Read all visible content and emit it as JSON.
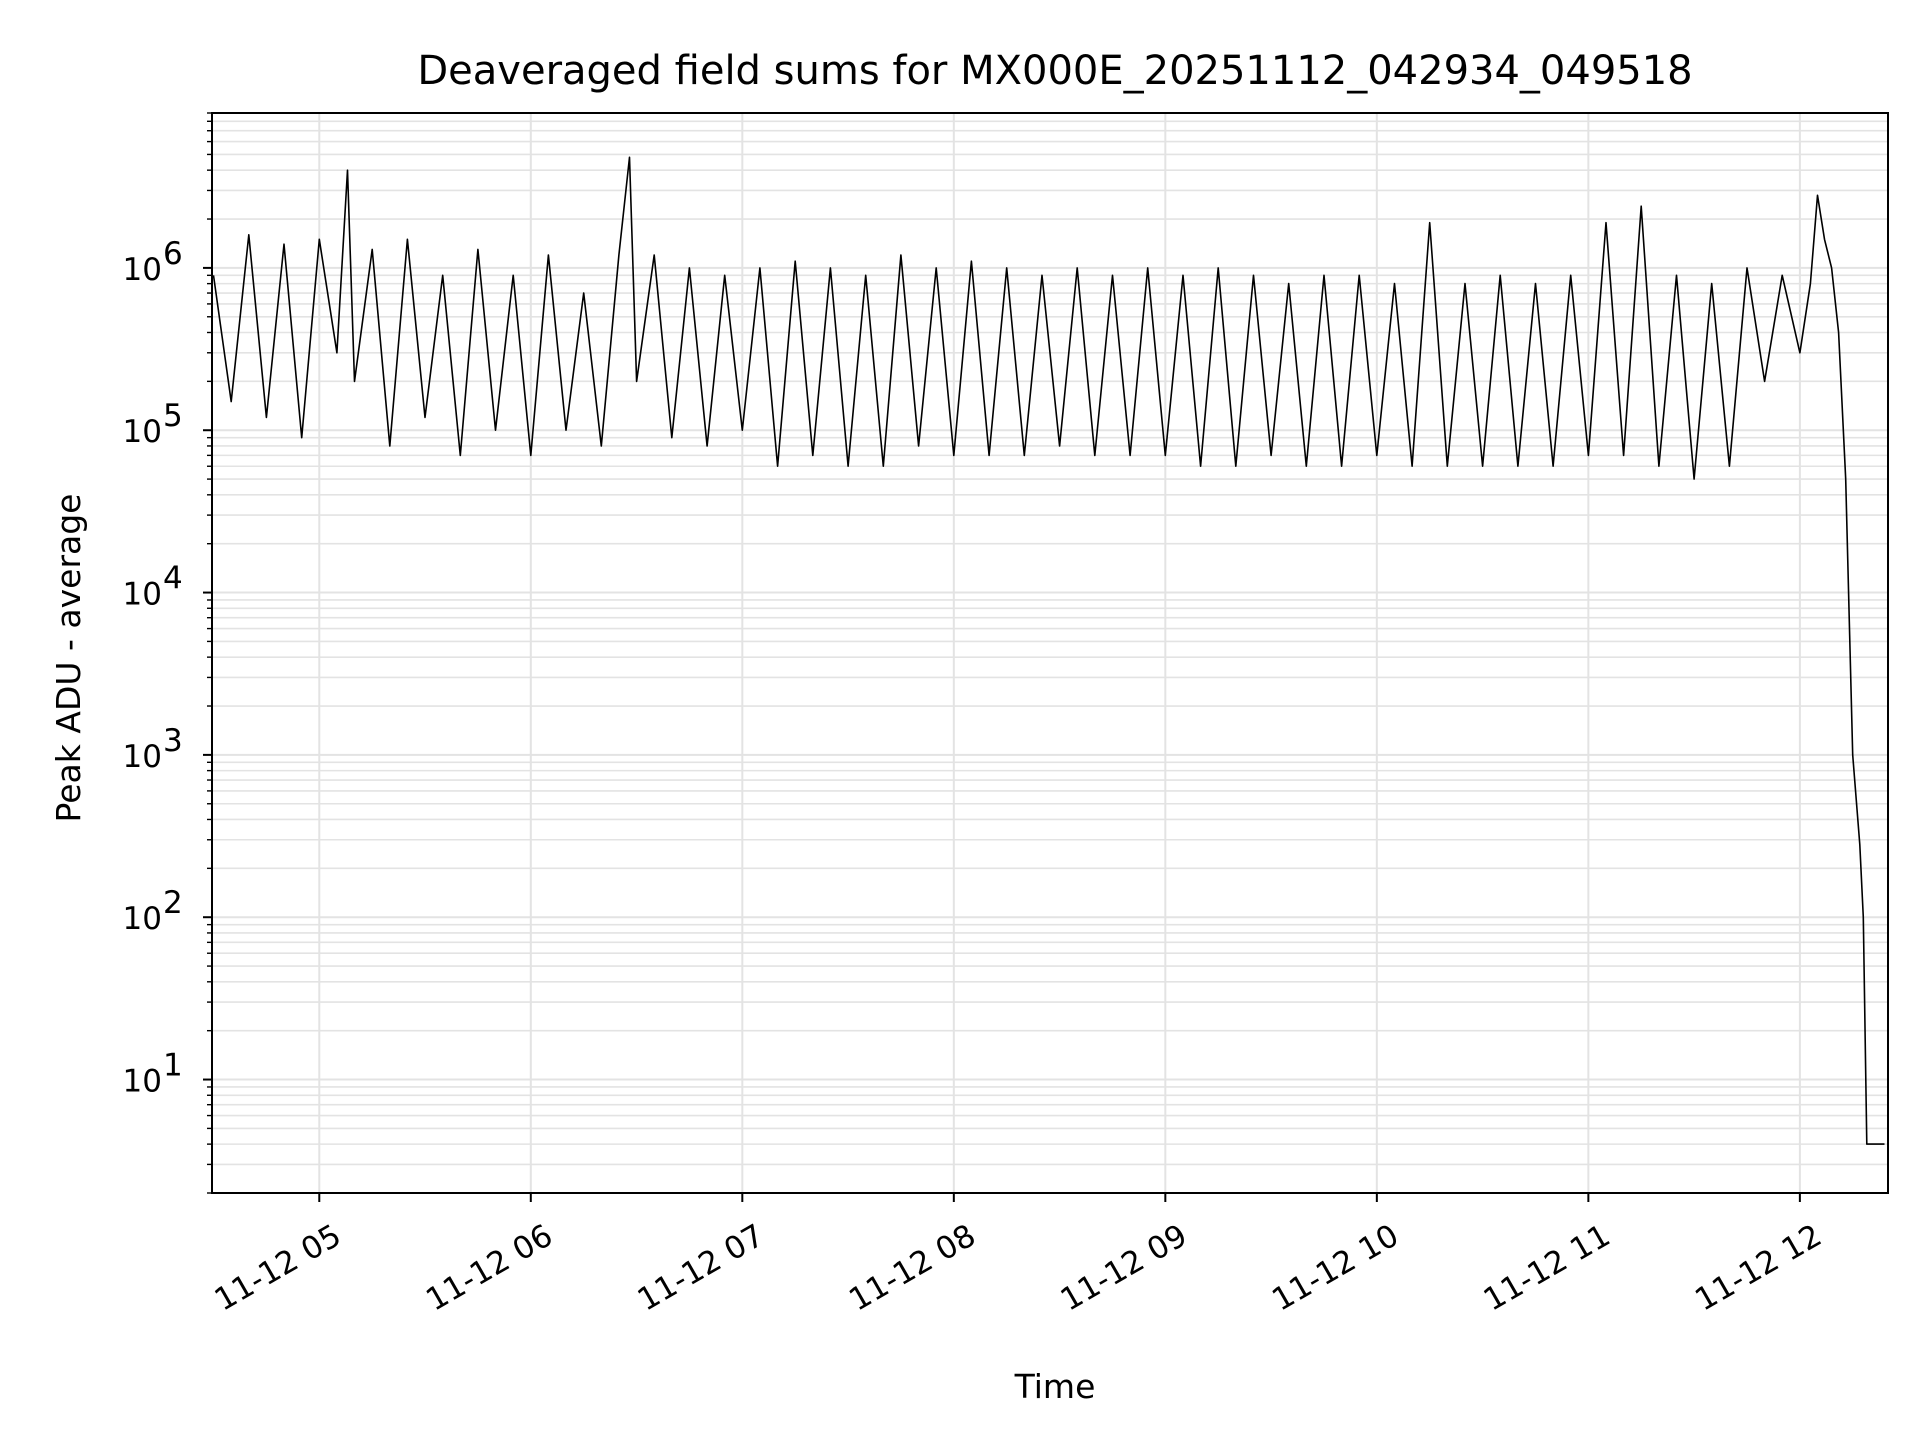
{
  "chart_data": {
    "type": "line",
    "title": "Deaveraged field sums for MX000E_20251112_042934_049518",
    "xlabel": "Time",
    "ylabel": "Peak ADU - average",
    "yscale": "log",
    "ylim": [
      2,
      9000000
    ],
    "xlim": [
      "2025-11-12 04:29:34",
      "2025-11-12 12:25:00"
    ],
    "grid": true,
    "x_ticks": [
      {
        "value": "2025-11-12 05:00",
        "label": "11-12 05"
      },
      {
        "value": "2025-11-12 06:00",
        "label": "11-12 06"
      },
      {
        "value": "2025-11-12 07:00",
        "label": "11-12 07"
      },
      {
        "value": "2025-11-12 08:00",
        "label": "11-12 08"
      },
      {
        "value": "2025-11-12 09:00",
        "label": "11-12 09"
      },
      {
        "value": "2025-11-12 10:00",
        "label": "11-12 10"
      },
      {
        "value": "2025-11-12 11:00",
        "label": "11-12 11"
      },
      {
        "value": "2025-11-12 12:00",
        "label": "11-12 12"
      }
    ],
    "y_ticks": [
      {
        "value": 10,
        "base": "10",
        "exp": "1"
      },
      {
        "value": 100,
        "base": "10",
        "exp": "2"
      },
      {
        "value": 1000,
        "base": "10",
        "exp": "3"
      },
      {
        "value": 10000,
        "base": "10",
        "exp": "4"
      },
      {
        "value": 100000,
        "base": "10",
        "exp": "5"
      },
      {
        "value": 1000000,
        "base": "10",
        "exp": "6"
      }
    ],
    "series": [
      {
        "color": "#000000",
        "x": [
          "2025-11-12 04:30",
          "2025-11-12 04:35",
          "2025-11-12 04:40",
          "2025-11-12 04:45",
          "2025-11-12 04:50",
          "2025-11-12 04:55",
          "2025-11-12 05:00",
          "2025-11-12 05:05",
          "2025-11-12 05:08",
          "2025-11-12 05:10",
          "2025-11-12 05:15",
          "2025-11-12 05:20",
          "2025-11-12 05:25",
          "2025-11-12 05:30",
          "2025-11-12 05:35",
          "2025-11-12 05:40",
          "2025-11-12 05:45",
          "2025-11-12 05:50",
          "2025-11-12 05:55",
          "2025-11-12 06:00",
          "2025-11-12 06:05",
          "2025-11-12 06:10",
          "2025-11-12 06:15",
          "2025-11-12 06:20",
          "2025-11-12 06:25",
          "2025-11-12 06:28",
          "2025-11-12 06:30",
          "2025-11-12 06:35",
          "2025-11-12 06:40",
          "2025-11-12 06:45",
          "2025-11-12 06:50",
          "2025-11-12 06:55",
          "2025-11-12 07:00",
          "2025-11-12 07:05",
          "2025-11-12 07:10",
          "2025-11-12 07:15",
          "2025-11-12 07:20",
          "2025-11-12 07:25",
          "2025-11-12 07:30",
          "2025-11-12 07:35",
          "2025-11-12 07:40",
          "2025-11-12 07:45",
          "2025-11-12 07:50",
          "2025-11-12 07:55",
          "2025-11-12 08:00",
          "2025-11-12 08:05",
          "2025-11-12 08:10",
          "2025-11-12 08:15",
          "2025-11-12 08:20",
          "2025-11-12 08:25",
          "2025-11-12 08:30",
          "2025-11-12 08:35",
          "2025-11-12 08:40",
          "2025-11-12 08:45",
          "2025-11-12 08:50",
          "2025-11-12 08:55",
          "2025-11-12 09:00",
          "2025-11-12 09:05",
          "2025-11-12 09:10",
          "2025-11-12 09:15",
          "2025-11-12 09:20",
          "2025-11-12 09:25",
          "2025-11-12 09:30",
          "2025-11-12 09:35",
          "2025-11-12 09:40",
          "2025-11-12 09:45",
          "2025-11-12 09:50",
          "2025-11-12 09:55",
          "2025-11-12 10:00",
          "2025-11-12 10:05",
          "2025-11-12 10:10",
          "2025-11-12 10:15",
          "2025-11-12 10:20",
          "2025-11-12 10:25",
          "2025-11-12 10:30",
          "2025-11-12 10:35",
          "2025-11-12 10:40",
          "2025-11-12 10:45",
          "2025-11-12 10:50",
          "2025-11-12 10:55",
          "2025-11-12 11:00",
          "2025-11-12 11:05",
          "2025-11-12 11:10",
          "2025-11-12 11:15",
          "2025-11-12 11:20",
          "2025-11-12 11:25",
          "2025-11-12 11:30",
          "2025-11-12 11:35",
          "2025-11-12 11:40",
          "2025-11-12 11:45",
          "2025-11-12 11:50",
          "2025-11-12 11:55",
          "2025-11-12 12:00",
          "2025-11-12 12:03",
          "2025-11-12 12:05",
          "2025-11-12 12:07",
          "2025-11-12 12:09",
          "2025-11-12 12:11",
          "2025-11-12 12:13",
          "2025-11-12 12:15",
          "2025-11-12 12:17",
          "2025-11-12 12:18",
          "2025-11-12 12:19",
          "2025-11-12 12:20",
          "2025-11-12 12:21",
          "2025-11-12 12:22",
          "2025-11-12 12:23",
          "2025-11-12 12:24"
        ],
        "y": [
          900000,
          150000,
          1600000,
          120000,
          1400000,
          90000,
          1500000,
          300000,
          4000000,
          200000,
          1300000,
          80000,
          1500000,
          120000,
          900000,
          70000,
          1300000,
          100000,
          900000,
          70000,
          1200000,
          100000,
          700000,
          80000,
          1200000,
          4800000,
          200000,
          1200000,
          90000,
          1000000,
          80000,
          900000,
          100000,
          1000000,
          60000,
          1100000,
          70000,
          1000000,
          60000,
          900000,
          60000,
          1200000,
          80000,
          1000000,
          70000,
          1100000,
          70000,
          1000000,
          70000,
          900000,
          80000,
          1000000,
          70000,
          900000,
          70000,
          1000000,
          70000,
          900000,
          60000,
          1000000,
          60000,
          900000,
          70000,
          800000,
          60000,
          900000,
          60000,
          900000,
          70000,
          800000,
          60000,
          1900000,
          60000,
          800000,
          60000,
          900000,
          60000,
          800000,
          60000,
          900000,
          70000,
          1900000,
          70000,
          2400000,
          60000,
          900000,
          50000,
          800000,
          60000,
          1000000,
          200000,
          900000,
          300000,
          800000,
          2800000,
          1500000,
          1000000,
          400000,
          50000,
          1000,
          280,
          100,
          4,
          4,
          4,
          4,
          4,
          4
        ]
      }
    ]
  }
}
